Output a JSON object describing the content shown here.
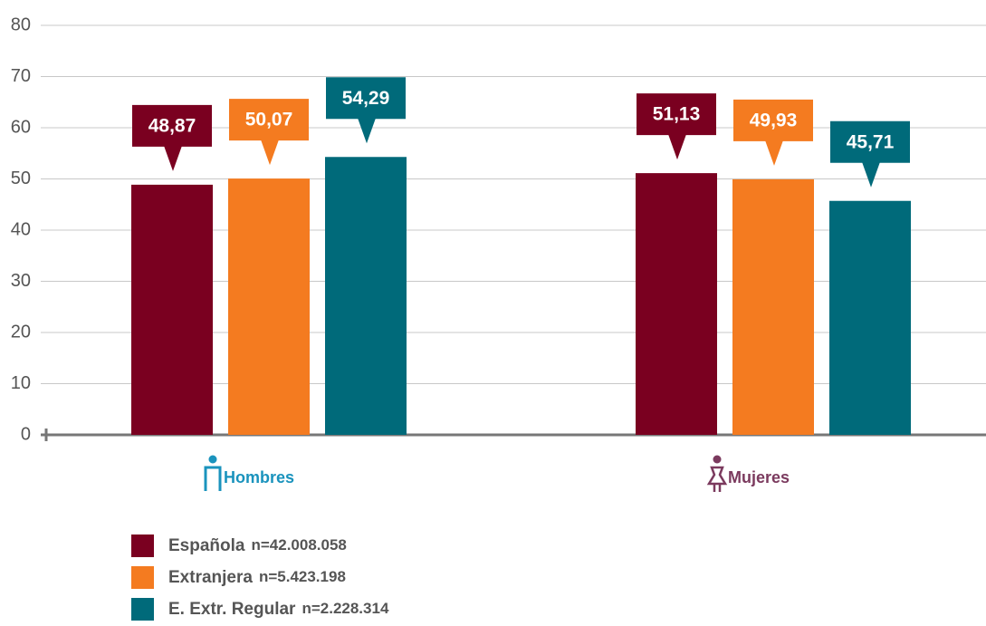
{
  "chart_data": {
    "type": "bar",
    "categories": [
      "Hombres",
      "Mujeres"
    ],
    "category_colors": [
      "#1a93bd",
      "#7b3a5e"
    ],
    "series": [
      {
        "name": "Española",
        "legend_note": "n=42.008.058",
        "color": "#7a0020",
        "values": [
          48.87,
          51.13
        ],
        "value_labels": [
          "48,87",
          "51,13"
        ]
      },
      {
        "name": "Extranjera",
        "legend_note": "n=5.423.198",
        "color": "#f47b20",
        "values": [
          50.07,
          49.93
        ],
        "value_labels": [
          "50,07",
          "49,93"
        ]
      },
      {
        "name": "E. Extr. Regular",
        "legend_note": "n=2.228.314",
        "color": "#006a7a",
        "values": [
          54.29,
          45.71
        ],
        "value_labels": [
          "54,29",
          "45,71"
        ]
      }
    ],
    "ylim": [
      0,
      80
    ],
    "yticks": [
      0,
      10,
      20,
      30,
      40,
      50,
      60,
      70,
      80
    ],
    "grid": true
  }
}
